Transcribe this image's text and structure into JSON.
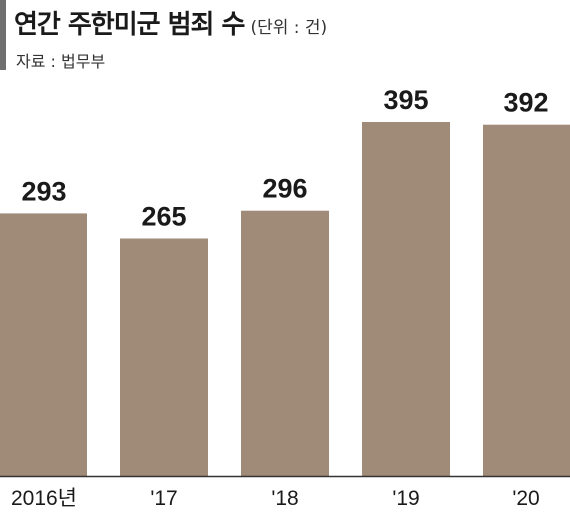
{
  "header": {
    "title": "연간 주한미군 범죄 수",
    "unit": "(단위 : 건)",
    "source": "자료 : 법무부"
  },
  "colors": {
    "bar": "#a08a78",
    "baseline": "#333333",
    "accent": "#6f6f6f"
  },
  "chart_data": {
    "type": "bar",
    "title": "연간 주한미군 범죄 수",
    "unit": "(단위 : 건)",
    "categories": [
      "2016년",
      "'17",
      "'18",
      "'19",
      "'20"
    ],
    "values": [
      293,
      265,
      296,
      395,
      392
    ],
    "xlabel": "",
    "ylabel": "",
    "ylim": [
      0,
      420
    ],
    "grid": false
  }
}
